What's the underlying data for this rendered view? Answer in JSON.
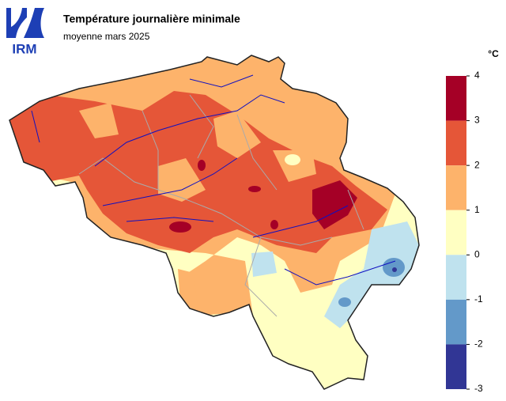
{
  "logo": "IRM",
  "title": "Température journalière minimale",
  "subtitle": "moyenne mars 2025",
  "legend": {
    "unit": "°C",
    "ticks": [
      4,
      3,
      2,
      1,
      0,
      -1,
      -2,
      -3
    ],
    "colors": [
      "#a50026",
      "#e55638",
      "#fdb36b",
      "#ffffc2",
      "#bfe2ee",
      "#6399c9",
      "#313695"
    ]
  }
}
